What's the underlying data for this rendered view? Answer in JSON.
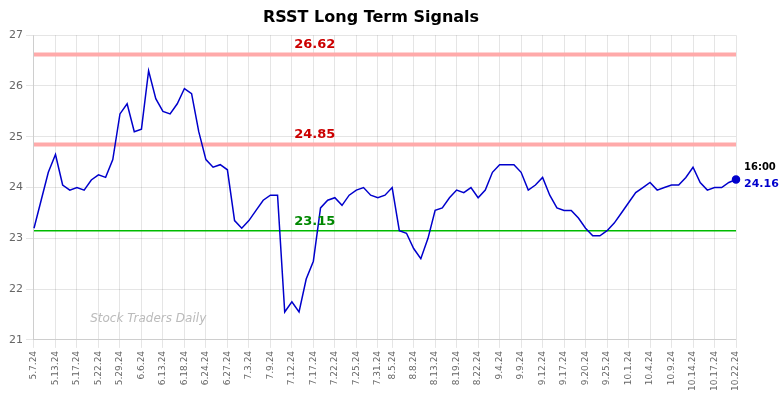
{
  "chart_data": {
    "type": "line",
    "title": "RSST Long Term Signals",
    "categories": [
      "5.7.24",
      null,
      null,
      "5.13.24",
      null,
      null,
      "5.17.24",
      null,
      null,
      "5.22.24",
      null,
      null,
      "5.29.24",
      null,
      null,
      "6.6.24",
      null,
      null,
      "6.13.24",
      null,
      null,
      "6.18.24",
      null,
      null,
      "6.24.24",
      null,
      null,
      "6.27.24",
      null,
      null,
      "7.3.24",
      null,
      null,
      "7.9.24",
      null,
      null,
      "7.12.24",
      null,
      null,
      "7.17.24",
      null,
      null,
      "7.22.24",
      null,
      null,
      "7.25.24",
      null,
      null,
      "7.31.24",
      null,
      "8.5.24",
      null,
      null,
      "8.8.24",
      null,
      null,
      "8.13.24",
      null,
      null,
      "8.19.24",
      null,
      null,
      "8.22.24",
      null,
      null,
      "9.4.24",
      null,
      null,
      "9.9.24",
      null,
      null,
      "9.12.24",
      null,
      null,
      "9.17.24",
      null,
      null,
      "9.20.24",
      null,
      null,
      "9.25.24",
      null,
      null,
      "10.1.24",
      null,
      null,
      "10.4.24",
      null,
      null,
      "10.9.24",
      null,
      null,
      "10.14.24",
      null,
      null,
      "10.17.24",
      null,
      null,
      "10.22.24"
    ],
    "values": [
      23.2,
      23.75,
      24.3,
      24.65,
      24.05,
      23.95,
      24.0,
      23.95,
      24.15,
      24.25,
      24.2,
      24.55,
      25.45,
      25.65,
      25.1,
      25.15,
      26.3,
      25.75,
      25.5,
      25.45,
      25.65,
      25.95,
      25.85,
      25.1,
      24.55,
      24.4,
      24.45,
      24.35,
      23.35,
      23.2,
      23.35,
      23.55,
      23.75,
      23.85,
      23.85,
      21.55,
      21.75,
      21.55,
      22.2,
      22.55,
      23.6,
      23.75,
      23.8,
      23.65,
      23.85,
      23.95,
      24.0,
      23.85,
      23.8,
      23.85,
      24.0,
      23.15,
      23.1,
      22.8,
      22.6,
      23.0,
      23.55,
      23.6,
      23.8,
      23.95,
      23.9,
      24.0,
      23.8,
      23.95,
      24.3,
      24.45,
      24.45,
      24.45,
      24.3,
      23.95,
      24.05,
      24.2,
      23.85,
      23.6,
      23.55,
      23.55,
      23.4,
      23.2,
      23.05,
      23.05,
      23.15,
      23.3,
      23.5,
      23.7,
      23.9,
      24.0,
      24.1,
      23.95,
      24.0,
      24.05,
      24.05,
      24.2,
      24.4,
      24.1,
      23.95,
      24.0,
      24.0,
      24.1,
      24.16
    ],
    "color": "#0000cc",
    "ylim": [
      21,
      27
    ],
    "yticks": [
      21,
      22,
      23,
      24,
      25,
      26,
      27
    ],
    "grid": true,
    "reference_lines": [
      {
        "value": 26.62,
        "label": "26.62",
        "color": "#ffaaaa",
        "label_color": "#cc0000"
      },
      {
        "value": 24.85,
        "label": "24.85",
        "color": "#ffaaaa",
        "label_color": "#cc0000"
      },
      {
        "value": 23.15,
        "label": "23.15",
        "color": "#00bb00",
        "label_color": "#008800"
      }
    ],
    "last_time_label": "16:00",
    "last_value_label": "24.16",
    "watermark": "Stock Traders Daily",
    "watermark_color": "#bbbbbb"
  }
}
